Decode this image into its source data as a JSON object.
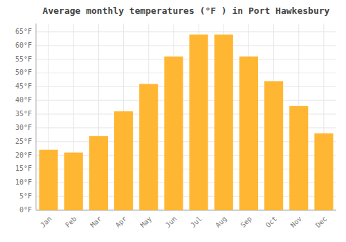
{
  "chart_data": {
    "type": "bar",
    "title": "Average monthly temperatures (°F ) in Port Hawkesbury",
    "categories": [
      "Jan",
      "Feb",
      "Mar",
      "Apr",
      "May",
      "Jun",
      "Jul",
      "Aug",
      "Sep",
      "Oct",
      "Nov",
      "Dec"
    ],
    "values": [
      22,
      21,
      27,
      36,
      46,
      56,
      64,
      64,
      56,
      47,
      38,
      28
    ],
    "color": "#FFB733",
    "ylim": [
      0,
      68
    ],
    "yticks": [
      {
        "value": 0,
        "label": "0°F"
      },
      {
        "value": 5,
        "label": "5°F"
      },
      {
        "value": 10,
        "label": "10°F"
      },
      {
        "value": 15,
        "label": "15°F"
      },
      {
        "value": 20,
        "label": "20°F"
      },
      {
        "value": 25,
        "label": "25°F"
      },
      {
        "value": 30,
        "label": "30°F"
      },
      {
        "value": 35,
        "label": "35°F"
      },
      {
        "value": 40,
        "label": "40°F"
      },
      {
        "value": 45,
        "label": "45°F"
      },
      {
        "value": 50,
        "label": "50°F"
      },
      {
        "value": 55,
        "label": "55°F"
      },
      {
        "value": 60,
        "label": "60°F"
      },
      {
        "value": 65,
        "label": "65°F"
      }
    ],
    "grid": true
  }
}
